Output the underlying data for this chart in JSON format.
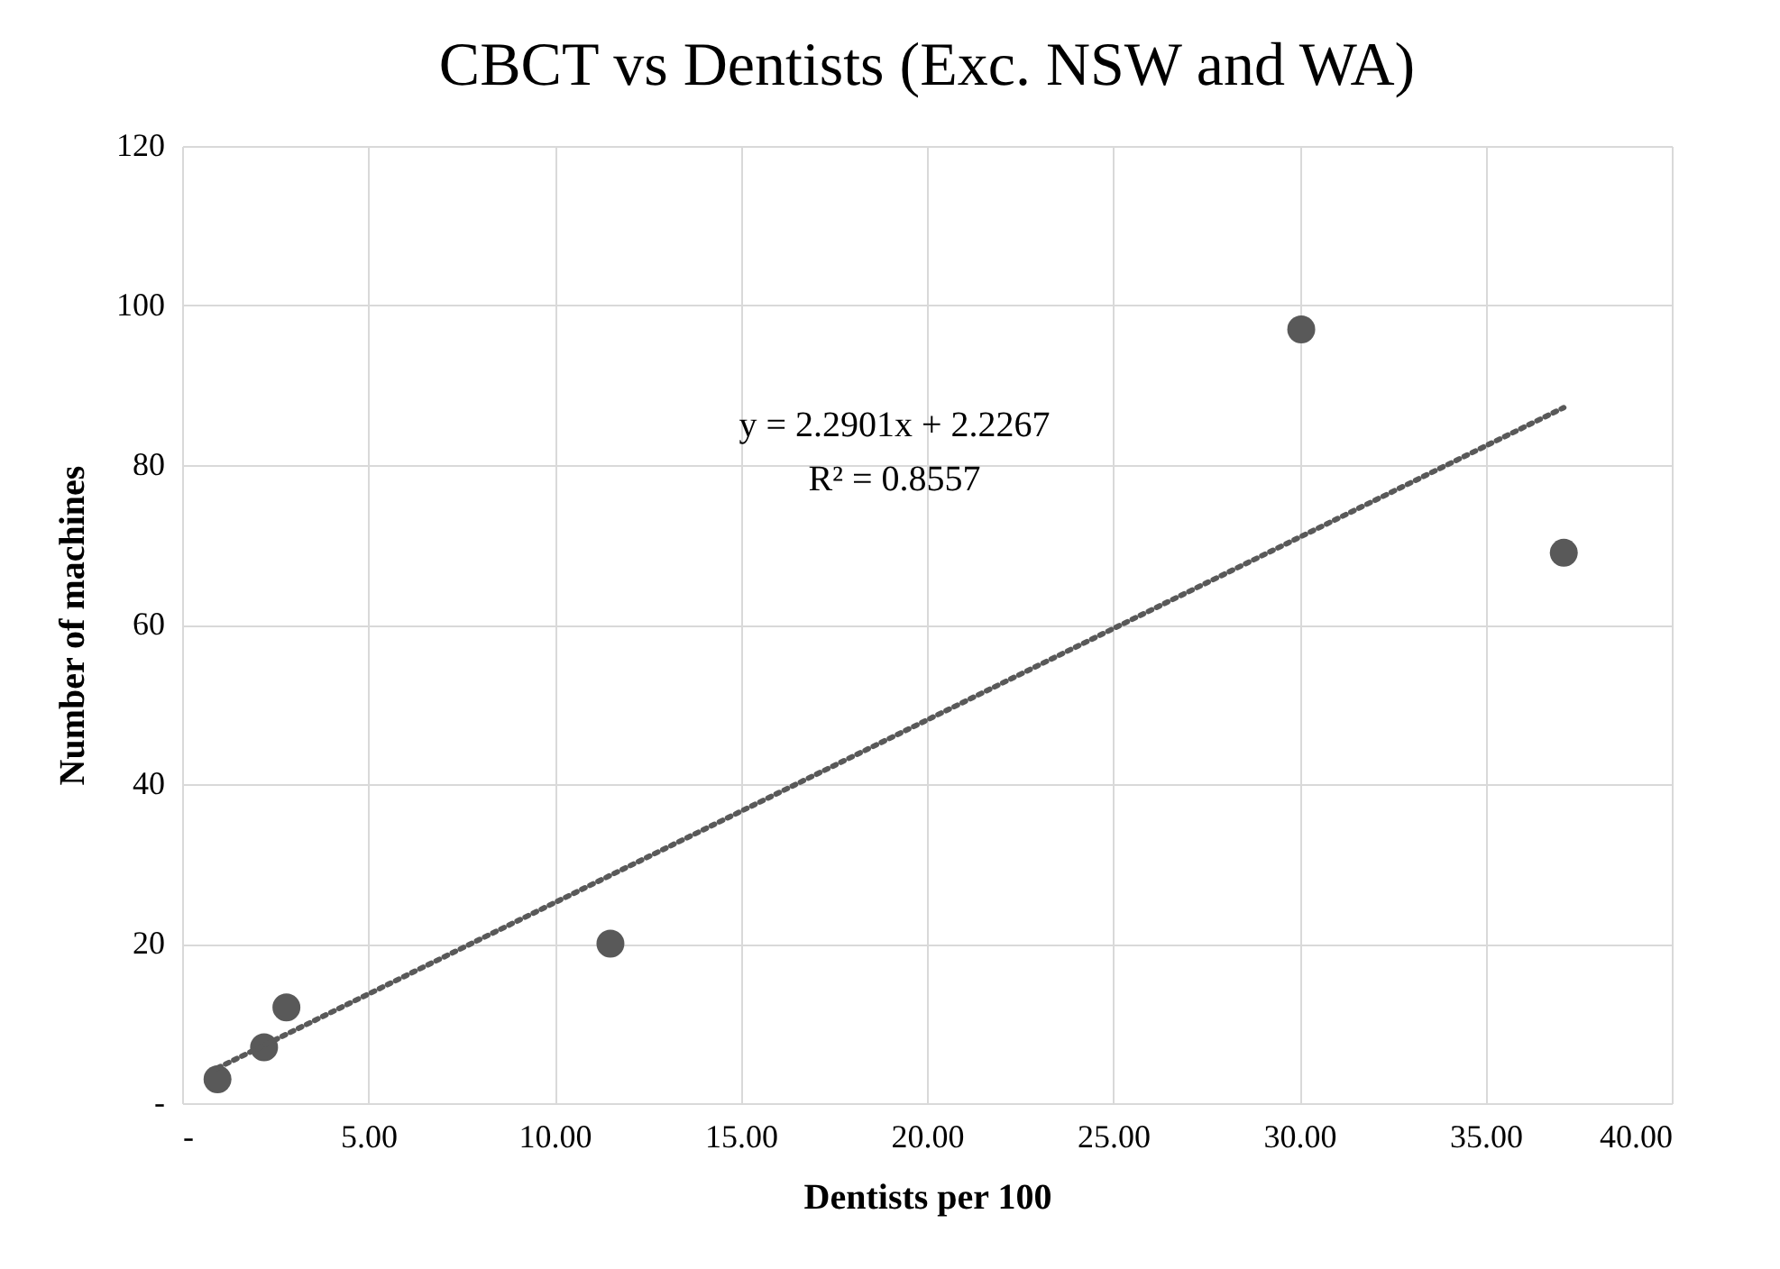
{
  "chart_data": {
    "type": "scatter",
    "title": "CBCT vs Dentists (Exc. NSW and WA)",
    "xlabel": "Dentists per 100",
    "ylabel": "Number of machines",
    "series": [
      {
        "color": "#595959",
        "x": [
          0.95,
          2.2,
          2.8,
          11.5,
          30.05,
          37.1
        ],
        "values": [
          3,
          7,
          12,
          20,
          97,
          69
        ],
        "marker": "circle"
      },
      {
        "type": "line",
        "color": "#595959",
        "x": [
          0.95,
          37.1
        ],
        "values": [
          4.4,
          87.2
        ],
        "line_style": "dotted",
        "marker": "none"
      }
    ],
    "annotations": [
      "y = 2.2901x + 2.2267",
      "R² = 0.8557"
    ],
    "xlim": [
      0,
      40
    ],
    "ylim": [
      0,
      120
    ],
    "xticks": [
      {
        "value": 0,
        "label": "-"
      },
      {
        "value": 5,
        "label": "5.00"
      },
      {
        "value": 10,
        "label": "10.00"
      },
      {
        "value": 15,
        "label": "15.00"
      },
      {
        "value": 20,
        "label": "20.00"
      },
      {
        "value": 25,
        "label": "25.00"
      },
      {
        "value": 30,
        "label": "30.00"
      },
      {
        "value": 35,
        "label": "35.00"
      },
      {
        "value": 40,
        "label": "40.00"
      }
    ],
    "yticks": [
      {
        "value": 0,
        "label": "-"
      },
      20,
      40,
      60,
      80,
      100,
      120
    ],
    "grid": true
  }
}
